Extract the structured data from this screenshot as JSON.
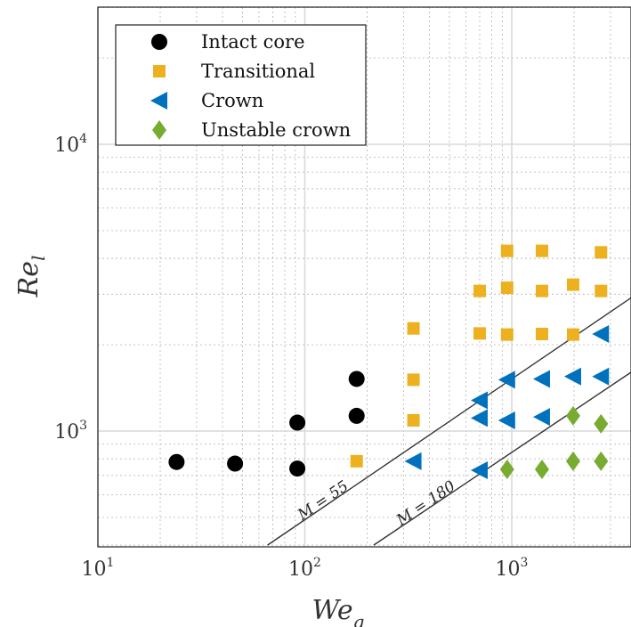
{
  "chart_data": {
    "type": "scatter",
    "xlabel": "We",
    "xlabel_sub": "g",
    "ylabel": "Re",
    "ylabel_sub": "l",
    "xscale": "log",
    "yscale": "log",
    "xlim": [
      10,
      4000
    ],
    "ylim": [
      400,
      30000
    ],
    "grid": true,
    "legend_position": "top-left",
    "x_ticks": [
      {
        "base": "10",
        "exp": "1",
        "value": 10
      },
      {
        "base": "10",
        "exp": "2",
        "value": 100
      },
      {
        "base": "10",
        "exp": "3",
        "value": 1000
      }
    ],
    "y_ticks": [
      {
        "base": "10",
        "exp": "3",
        "value": 1000
      },
      {
        "base": "10",
        "exp": "4",
        "value": 10000
      }
    ],
    "series": [
      {
        "name": "Intact core",
        "marker": "circle",
        "color": "#000000",
        "points": [
          [
            24,
            780
          ],
          [
            46,
            770
          ],
          [
            92,
            740
          ],
          [
            92,
            1070
          ],
          [
            178,
            1130
          ],
          [
            178,
            1520
          ]
        ]
      },
      {
        "name": "Transitional",
        "marker": "square",
        "color": "#EDB120",
        "points": [
          [
            178,
            785
          ],
          [
            335,
            1090
          ],
          [
            335,
            1510
          ],
          [
            335,
            2280
          ],
          [
            700,
            2190
          ],
          [
            700,
            3080
          ],
          [
            950,
            2170
          ],
          [
            950,
            3160
          ],
          [
            950,
            4250
          ],
          [
            1400,
            2180
          ],
          [
            1400,
            3080
          ],
          [
            1400,
            4250
          ],
          [
            1980,
            2170
          ],
          [
            1980,
            3240
          ],
          [
            2700,
            3080
          ],
          [
            2700,
            4200
          ]
        ]
      },
      {
        "name": "Crown",
        "marker": "triangle-left",
        "color": "#0072BD",
        "points": [
          [
            335,
            785
          ],
          [
            700,
            730
          ],
          [
            700,
            1110
          ],
          [
            700,
            1280
          ],
          [
            950,
            1090
          ],
          [
            950,
            1510
          ],
          [
            1400,
            1120
          ],
          [
            1400,
            1520
          ],
          [
            1980,
            1550
          ],
          [
            2700,
            1550
          ],
          [
            2700,
            2180
          ]
        ]
      },
      {
        "name": "Unstable crown",
        "marker": "diamond",
        "color": "#77AC30",
        "points": [
          [
            950,
            735
          ],
          [
            1400,
            735
          ],
          [
            1980,
            785
          ],
          [
            1980,
            1130
          ],
          [
            2700,
            785
          ],
          [
            2700,
            1060
          ]
        ]
      }
    ],
    "lines": [
      {
        "label": "M = 55",
        "points": [
          [
            66,
            400
          ],
          [
            4000,
            3000
          ]
        ]
      },
      {
        "label": "M = 180",
        "points": [
          [
            215,
            400
          ],
          [
            4000,
            1650
          ]
        ]
      }
    ]
  }
}
